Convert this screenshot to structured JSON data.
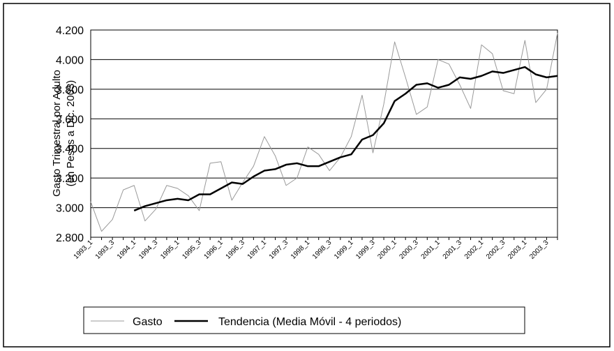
{
  "chart_data": {
    "type": "line",
    "ylabel": [
      "Gasto Trimestral por Adulto",
      "(en Pesos a Dic. 2003)"
    ],
    "categories": [
      "1993_1",
      null,
      "1993_3",
      null,
      "1994_1",
      null,
      "1994_3",
      null,
      "1995_1",
      null,
      "1995_3",
      null,
      "1996_1",
      null,
      "1996_3",
      null,
      "1997_1",
      null,
      "1997_3",
      null,
      "1998_1",
      null,
      "1998_3",
      null,
      "1999_1",
      null,
      "1999_3",
      null,
      "2000_1",
      null,
      "2000_3",
      null,
      "2001_1",
      null,
      "2001_3",
      null,
      "2002_1",
      null,
      "2002_3",
      null,
      "2003_1",
      null,
      "2003_3",
      null
    ],
    "series": [
      {
        "name": "Gasto",
        "color": "#999999",
        "width": 1,
        "values": [
          3040,
          2840,
          2920,
          3120,
          3150,
          2910,
          2990,
          3150,
          3130,
          3080,
          2980,
          3300,
          3310,
          3050,
          3170,
          3280,
          3480,
          3350,
          3150,
          3200,
          3410,
          3360,
          3250,
          3340,
          3480,
          3760,
          3370,
          3700,
          4120,
          3880,
          3630,
          3680,
          4000,
          3970,
          3830,
          3670,
          4100,
          4040,
          3790,
          3770,
          4130,
          3710,
          3800,
          4180
        ]
      },
      {
        "name": "Tendencia (Media Móvil - 4 periodos)",
        "color": "#000000",
        "width": 2.5,
        "values": [
          null,
          null,
          null,
          null,
          2980,
          3010,
          3030,
          3050,
          3060,
          3050,
          3090,
          3090,
          3130,
          3170,
          3160,
          3210,
          3250,
          3260,
          3290,
          3300,
          3280,
          3280,
          3310,
          3340,
          3360,
          3460,
          3490,
          3570,
          3720,
          3770,
          3830,
          3840,
          3810,
          3830,
          3880,
          3870,
          3890,
          3920,
          3910,
          3930,
          3950,
          3900,
          3880,
          3890
        ]
      }
    ],
    "ylim": [
      2800,
      4200
    ],
    "yticks": [
      {
        "value": 2800,
        "label": "2.800"
      },
      {
        "value": 3000,
        "label": "3.000"
      },
      {
        "value": 3200,
        "label": "3.200"
      },
      {
        "value": 3400,
        "label": "3.400"
      },
      {
        "value": 3600,
        "label": "3.600"
      },
      {
        "value": 3800,
        "label": "3.800"
      },
      {
        "value": 4000,
        "label": "4.000"
      },
      {
        "value": 4200,
        "label": "4.200"
      }
    ],
    "grid": true
  }
}
